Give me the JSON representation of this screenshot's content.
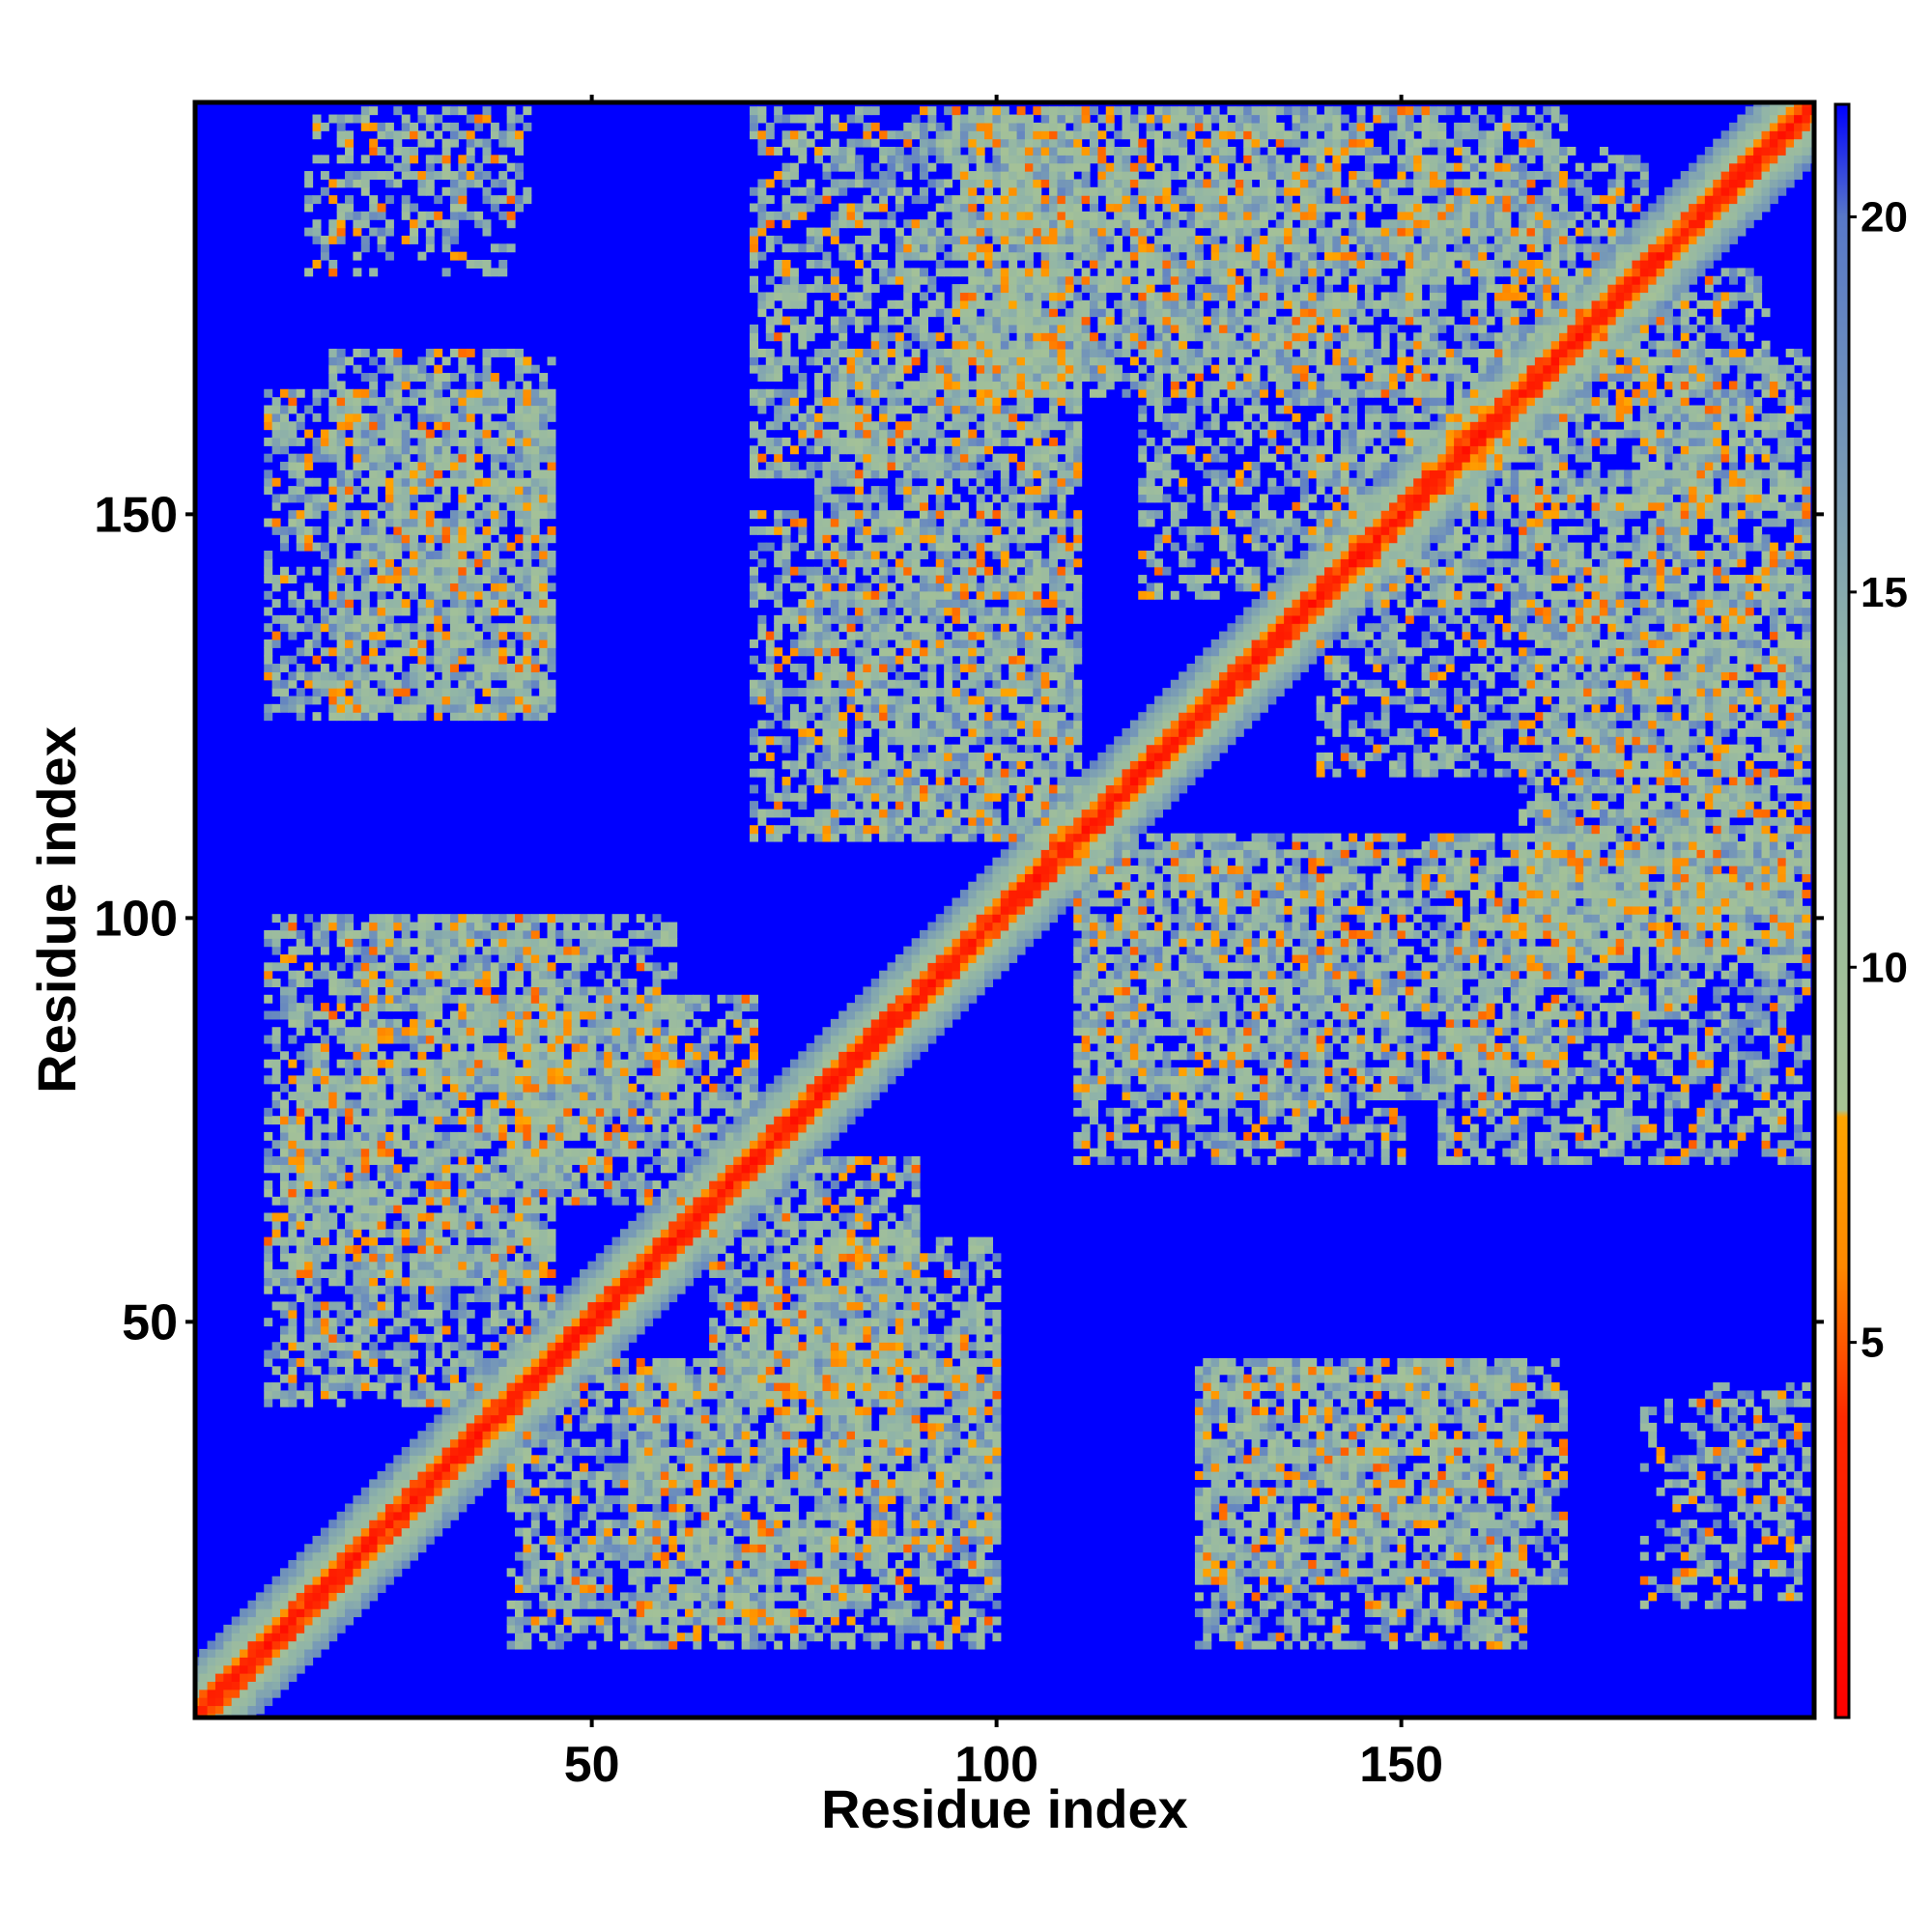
{
  "chart_data": {
    "type": "heatmap",
    "title": "",
    "xlabel": "Residue index",
    "ylabel": "Residue index",
    "xlim": [
      1,
      201
    ],
    "ylim": [
      1,
      201
    ],
    "x_ticks": [
      50,
      100,
      150
    ],
    "y_ticks": [
      50,
      100,
      150
    ],
    "x_tick_labels": [
      "50",
      "100",
      "150"
    ],
    "y_tick_labels": [
      "50",
      "100",
      "150"
    ],
    "colorbar": {
      "range": [
        0,
        21.5
      ],
      "ticks": [
        5,
        10,
        15,
        20
      ],
      "tick_labels": [
        "5",
        "10",
        "15",
        "20"
      ],
      "stops": [
        {
          "value": 0,
          "color": "#ff0000"
        },
        {
          "value": 4,
          "color": "#ff2a00"
        },
        {
          "value": 6,
          "color": "#ff8800"
        },
        {
          "value": 8,
          "color": "#ffa500"
        },
        {
          "value": 8.1,
          "color": "#a8c494"
        },
        {
          "value": 14,
          "color": "#90b4a8"
        },
        {
          "value": 20,
          "color": "#5878c8"
        },
        {
          "value": 21.5,
          "color": "#0000ff"
        }
      ]
    },
    "background_value": 21.5,
    "background_color": "#0000ff",
    "grid": false,
    "legend": "colorbar-right",
    "diagonal_band": {
      "core_width": 2.5,
      "halo_width": 7
    },
    "contact_blocks": [
      {
        "x": [
          18,
          45
        ],
        "y": [
          125,
          170
        ],
        "density": 0.6
      },
      {
        "x": [
          20,
          60
        ],
        "y": [
          80,
          100
        ],
        "density": 0.6
      },
      {
        "x": [
          12,
          45
        ],
        "y": [
          55,
          80
        ],
        "density": 0.6
      },
      {
        "x": [
          40,
          60
        ],
        "y": [
          70,
          90
        ],
        "density": 0.5
      },
      {
        "x": [
          40,
          100
        ],
        "y": [
          10,
          45
        ],
        "density": 0.55
      },
      {
        "x": [
          65,
          90
        ],
        "y": [
          40,
          70
        ],
        "density": 0.6
      },
      {
        "x": [
          70,
          110
        ],
        "y": [
          155,
          200
        ],
        "density": 0.55
      },
      {
        "x": [
          95,
          145
        ],
        "y": [
          170,
          200
        ],
        "density": 0.6
      },
      {
        "x": [
          70,
          110
        ],
        "y": [
          110,
          150
        ],
        "density": 0.5
      },
      {
        "x": [
          118,
          160
        ],
        "y": [
          140,
          170
        ],
        "density": 0.5
      },
      {
        "x": [
          110,
          150
        ],
        "y": [
          78,
          110
        ],
        "density": 0.55
      },
      {
        "x": [
          150,
          170
        ],
        "y": [
          78,
          110
        ],
        "density": 0.6
      },
      {
        "x": [
          165,
          200
        ],
        "y": [
          95,
          155
        ],
        "density": 0.55
      },
      {
        "x": [
          160,
          195
        ],
        "y": [
          150,
          180
        ],
        "density": 0.5
      },
      {
        "x": [
          150,
          170
        ],
        "y": [
          180,
          200
        ],
        "density": 0.55
      },
      {
        "x": [
          125,
          165
        ],
        "y": [
          10,
          45
        ],
        "density": 0.55
      },
      {
        "x": [
          180,
          200
        ],
        "y": [
          15,
          40
        ],
        "density": 0.3
      },
      {
        "x": [
          18,
          42
        ],
        "y": [
          185,
          200
        ],
        "density": 0.3
      }
    ]
  }
}
